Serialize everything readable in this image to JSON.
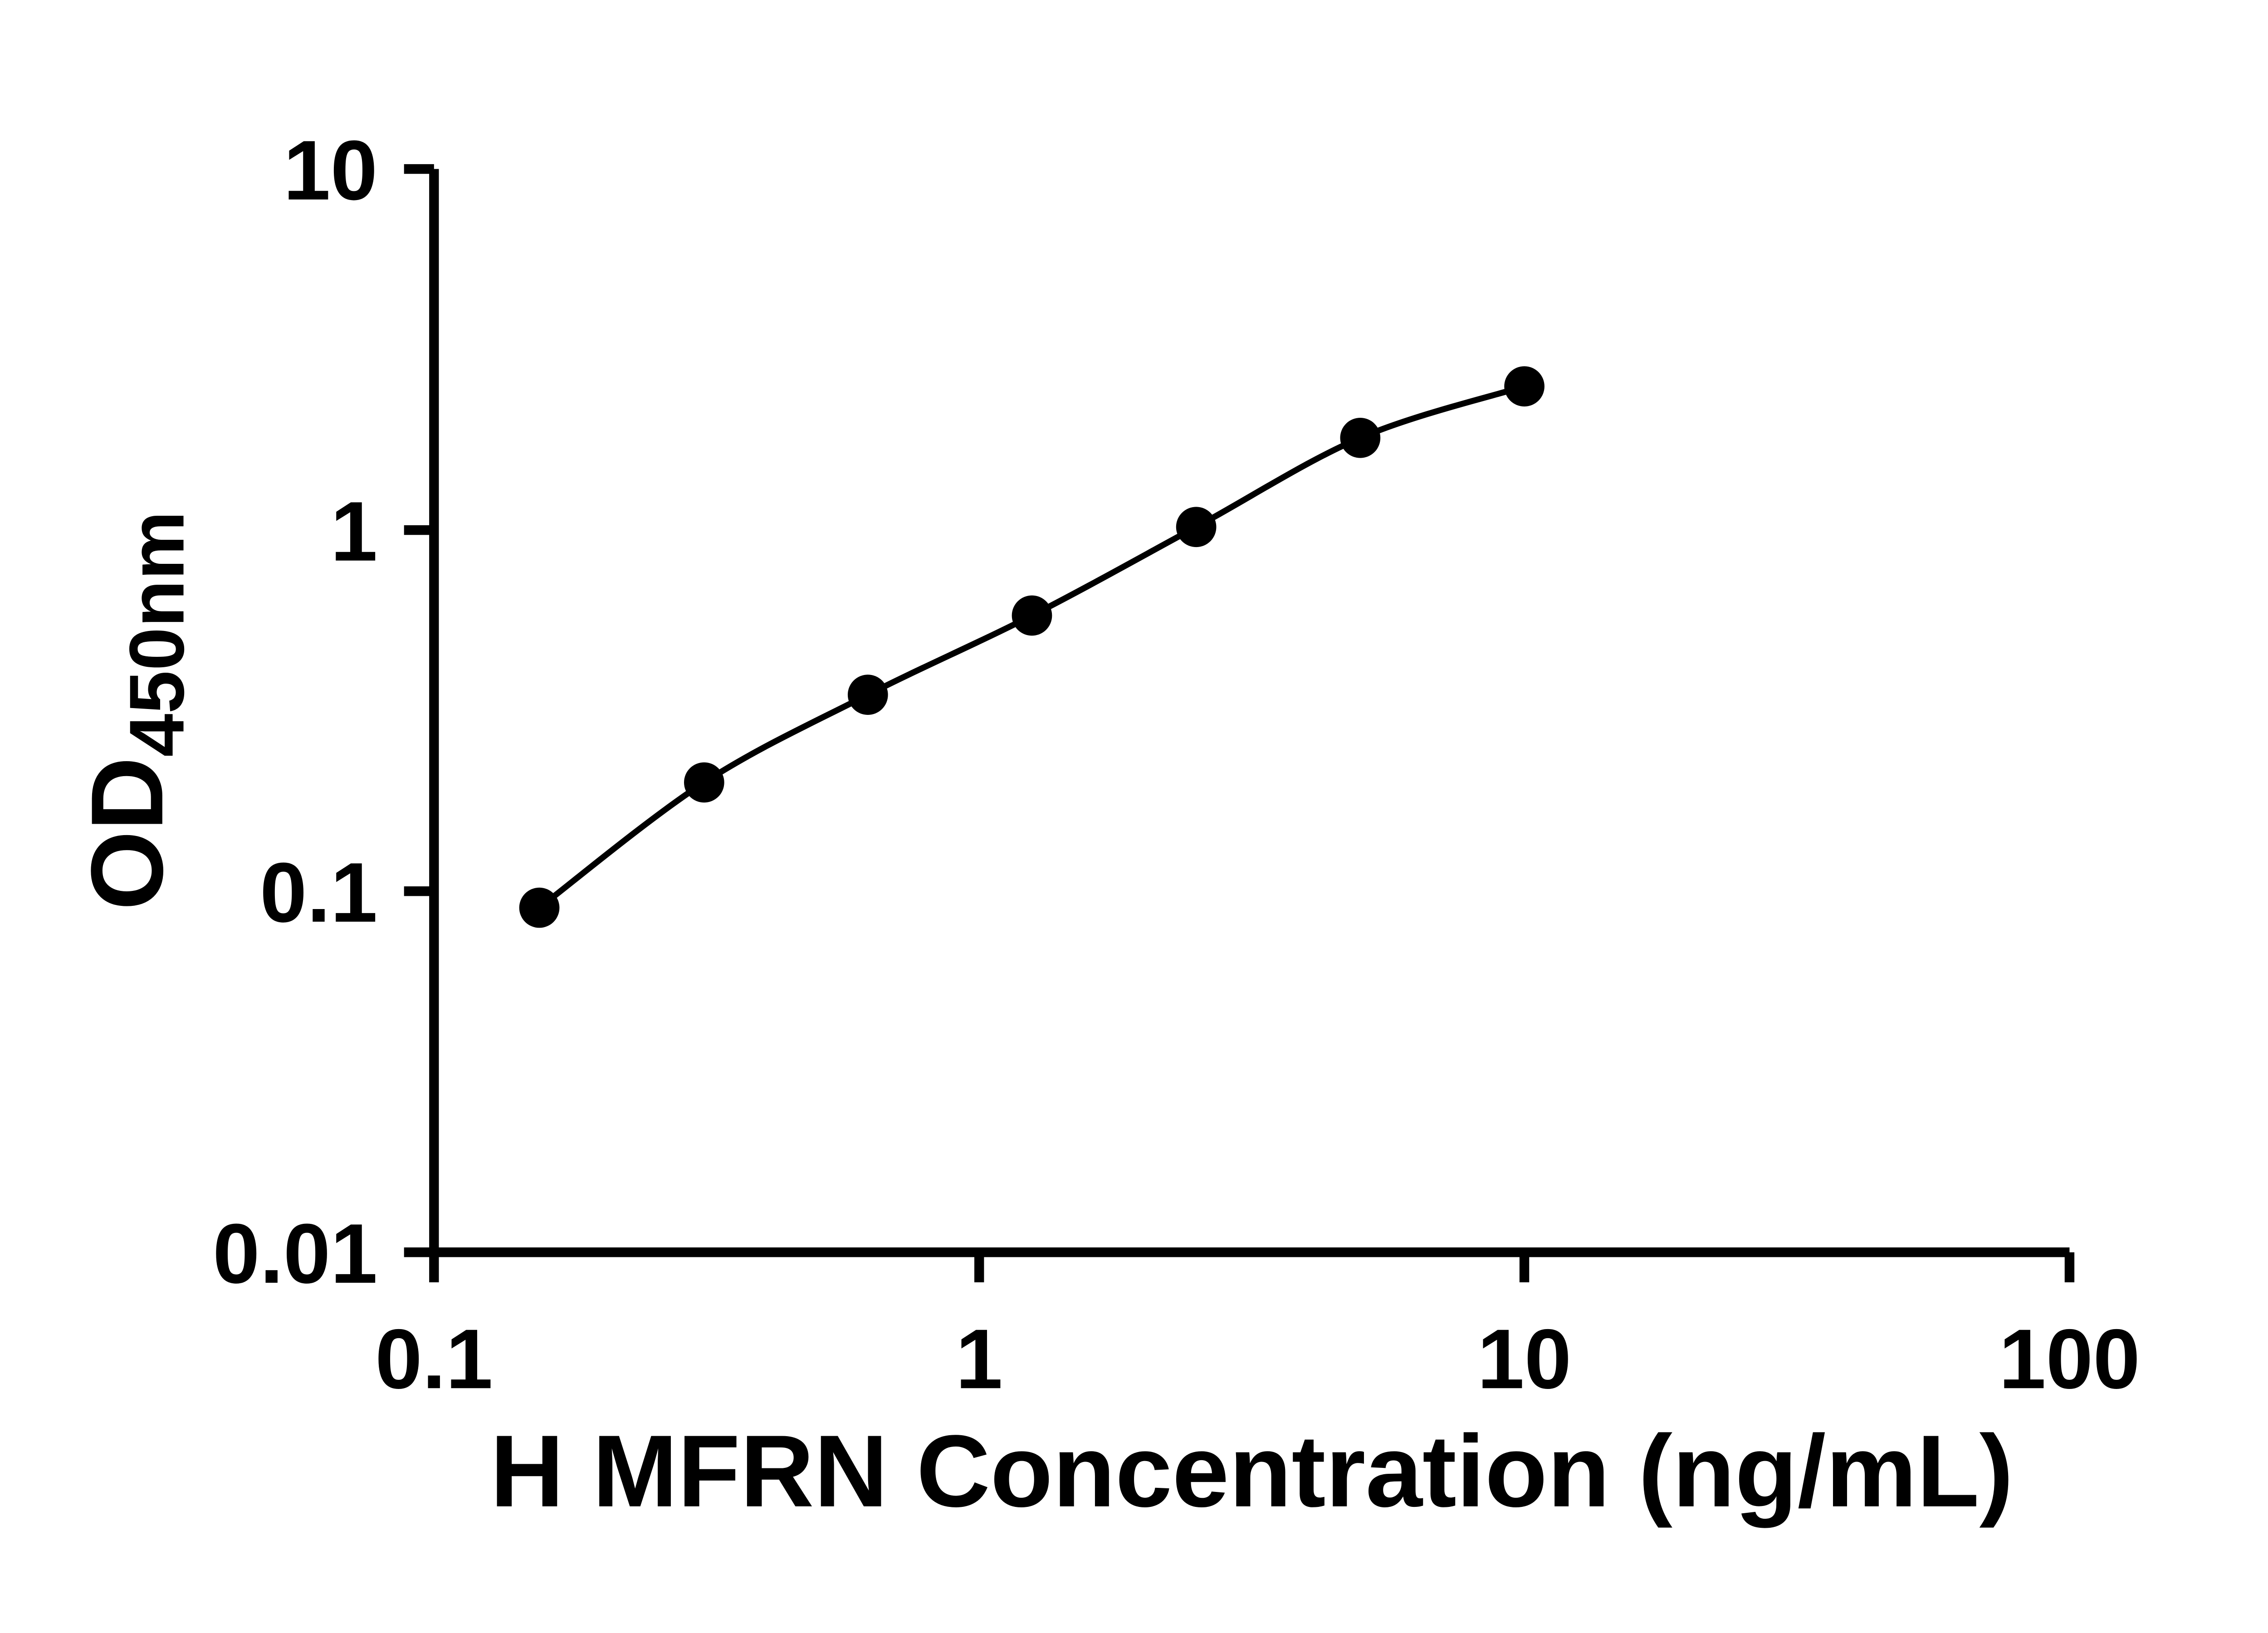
{
  "chart_data": {
    "type": "scatter",
    "subtype": "standard-curve-with-fit-line",
    "title": "",
    "xlabel": "H MFRN Concentration (ng/mL)",
    "ylabel": "OD450nm",
    "ylabel_main": "OD",
    "ylabel_sub": "450nm",
    "x": [
      0.156,
      0.313,
      0.625,
      1.25,
      2.5,
      5,
      10
    ],
    "y": [
      0.09,
      0.2,
      0.35,
      0.58,
      1.02,
      1.8,
      2.5
    ],
    "x_scale": "log",
    "y_scale": "log",
    "xlim": [
      0.1,
      100
    ],
    "ylim": [
      0.01,
      10
    ],
    "x_ticks": [
      {
        "value": 0.1,
        "label": "0.1"
      },
      {
        "value": 1,
        "label": "1"
      },
      {
        "value": 10,
        "label": "10"
      },
      {
        "value": 100,
        "label": "100"
      }
    ],
    "y_ticks": [
      {
        "value": 0.01,
        "label": "0.01"
      },
      {
        "value": 0.1,
        "label": "0.1"
      },
      {
        "value": 1,
        "label": "1"
      },
      {
        "value": 10,
        "label": "10"
      }
    ],
    "grid": false,
    "legend": "none",
    "line_color": "#000000",
    "marker_color": "#000000",
    "background_color": "#ffffff"
  }
}
